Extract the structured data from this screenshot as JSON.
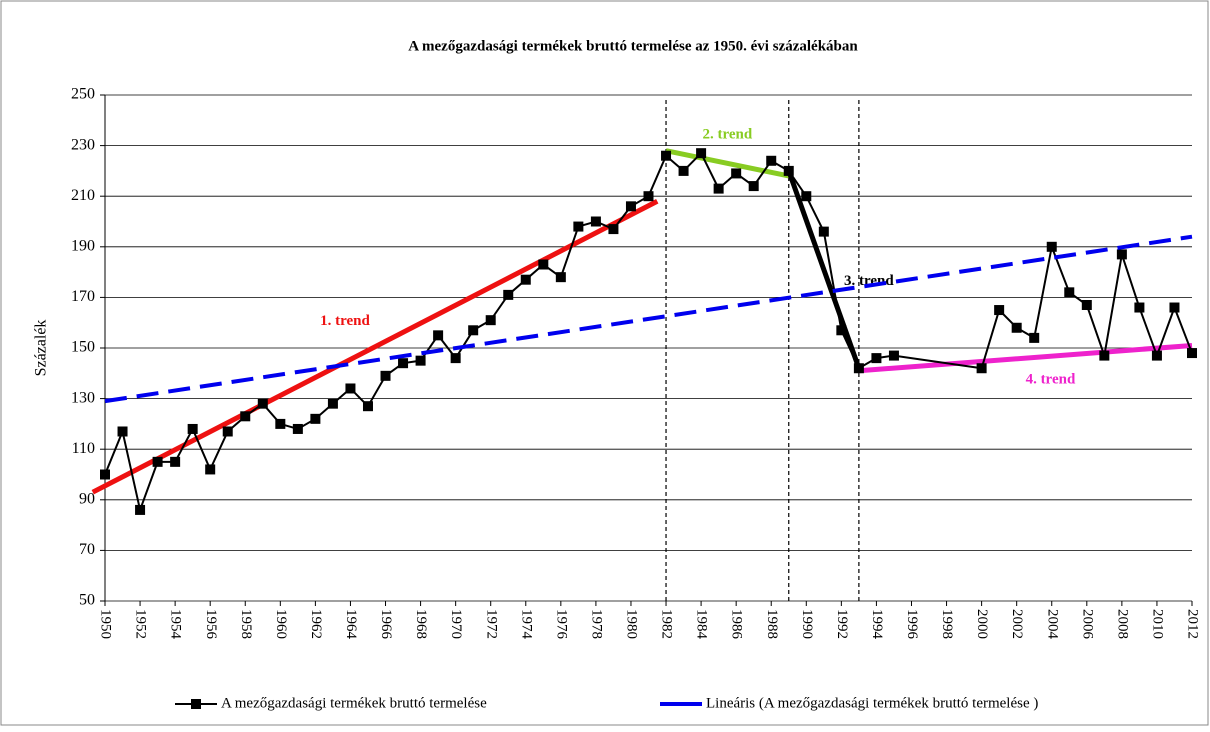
{
  "chart_data": {
    "type": "line",
    "title": "A mezőgazdasági termékek bruttó termelése az 1950. évi százalékában",
    "y_label": "Százalék",
    "xlim": [
      1950,
      2012
    ],
    "xticks": [
      1950,
      1952,
      1954,
      1956,
      1958,
      1960,
      1962,
      1964,
      1966,
      1968,
      1970,
      1972,
      1974,
      1976,
      1978,
      1980,
      1982,
      1984,
      1986,
      1988,
      1990,
      1992,
      1994,
      1996,
      1998,
      2000,
      2002,
      2004,
      2006,
      2008,
      2010,
      2012
    ],
    "ylim": [
      50,
      250
    ],
    "yticks": [
      50,
      70,
      90,
      110,
      130,
      150,
      170,
      190,
      210,
      230,
      250
    ],
    "grid": true,
    "legend": "bottom",
    "series": [
      {
        "name": "A mezőgazdasági termékek bruttó termelése",
        "color": "#000000",
        "marker": "square",
        "x": [
          1950,
          1951,
          1952,
          1953,
          1954,
          1955,
          1956,
          1957,
          1958,
          1959,
          1960,
          1961,
          1962,
          1963,
          1964,
          1965,
          1966,
          1967,
          1968,
          1969,
          1970,
          1971,
          1972,
          1973,
          1974,
          1975,
          1976,
          1977,
          1978,
          1979,
          1980,
          1981,
          1982,
          1983,
          1984,
          1985,
          1986,
          1987,
          1988,
          1989,
          1990,
          1991,
          1992,
          1993,
          1994,
          1995,
          2000,
          2001,
          2002,
          2003,
          2004,
          2005,
          2006,
          2007,
          2008,
          2009,
          2010,
          2011,
          2012
        ],
        "values": [
          100,
          117,
          86,
          105,
          105,
          118,
          102,
          117,
          123,
          128,
          120,
          118,
          122,
          128,
          134,
          127,
          139,
          144,
          145,
          155,
          146,
          157,
          161,
          171,
          177,
          183,
          178,
          198,
          200,
          197,
          206,
          210,
          226,
          220,
          227,
          213,
          219,
          214,
          224,
          220,
          210,
          196,
          157,
          142,
          146,
          147,
          142,
          165,
          158,
          154,
          190,
          172,
          167,
          147,
          187,
          166,
          147,
          166,
          148
        ]
      },
      {
        "name": "Lineáris (A mezőgazdasági termékek bruttó termelése )",
        "color": "#0000ee",
        "dashed": true,
        "x": [
          1950,
          2012
        ],
        "values": [
          129,
          194
        ]
      }
    ],
    "trend_lines": [
      {
        "label": "1. trend",
        "color": "#ee1111",
        "x": [
          1949.3,
          1981.5
        ],
        "values": [
          93,
          208
        ]
      },
      {
        "label": "2. trend",
        "color": "#88cc22",
        "x": [
          1982,
          1989
        ],
        "values": [
          228,
          218
        ]
      },
      {
        "label": "3. trend",
        "color": "#000000",
        "x": [
          1989,
          1993
        ],
        "values": [
          220,
          142
        ]
      },
      {
        "label": "4. trend",
        "color": "#ee22cc",
        "x": [
          1993,
          2012
        ],
        "values": [
          141,
          151
        ]
      }
    ],
    "vlines": [
      1982,
      1989,
      1993
    ]
  }
}
